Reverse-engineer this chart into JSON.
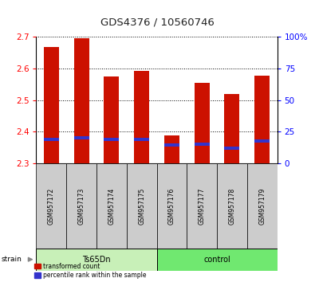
{
  "title": "GDS4376 / 10560746",
  "samples": [
    "GSM957172",
    "GSM957173",
    "GSM957174",
    "GSM957175",
    "GSM957176",
    "GSM957177",
    "GSM957178",
    "GSM957179"
  ],
  "red_values": [
    2.668,
    2.695,
    2.575,
    2.592,
    2.388,
    2.555,
    2.52,
    2.578
  ],
  "blue_values": [
    2.376,
    2.382,
    2.375,
    2.375,
    2.358,
    2.362,
    2.348,
    2.372
  ],
  "bar_bottom": 2.3,
  "ylim_left": [
    2.3,
    2.7
  ],
  "ylim_right": [
    0,
    100
  ],
  "yticks_left": [
    2.3,
    2.4,
    2.5,
    2.6,
    2.7
  ],
  "yticks_right": [
    0,
    25,
    50,
    75,
    100
  ],
  "ytick_labels_right": [
    "0",
    "25",
    "50",
    "75",
    "100%"
  ],
  "groups": [
    {
      "label": "Ts65Dn",
      "color": "#c8f0b8",
      "start": 0,
      "end": 3
    },
    {
      "label": "control",
      "color": "#70e870",
      "start": 4,
      "end": 7
    }
  ],
  "strain_label": "strain",
  "red_color": "#cc1100",
  "blue_color": "#3333cc",
  "bar_width": 0.5,
  "blue_bar_height": 0.01,
  "title_color": "#222222",
  "left_tick_color": "red",
  "right_tick_color": "blue",
  "background_label": "#cccccc",
  "legend_red_label": "transformed count",
  "legend_blue_label": "percentile rank within the sample"
}
